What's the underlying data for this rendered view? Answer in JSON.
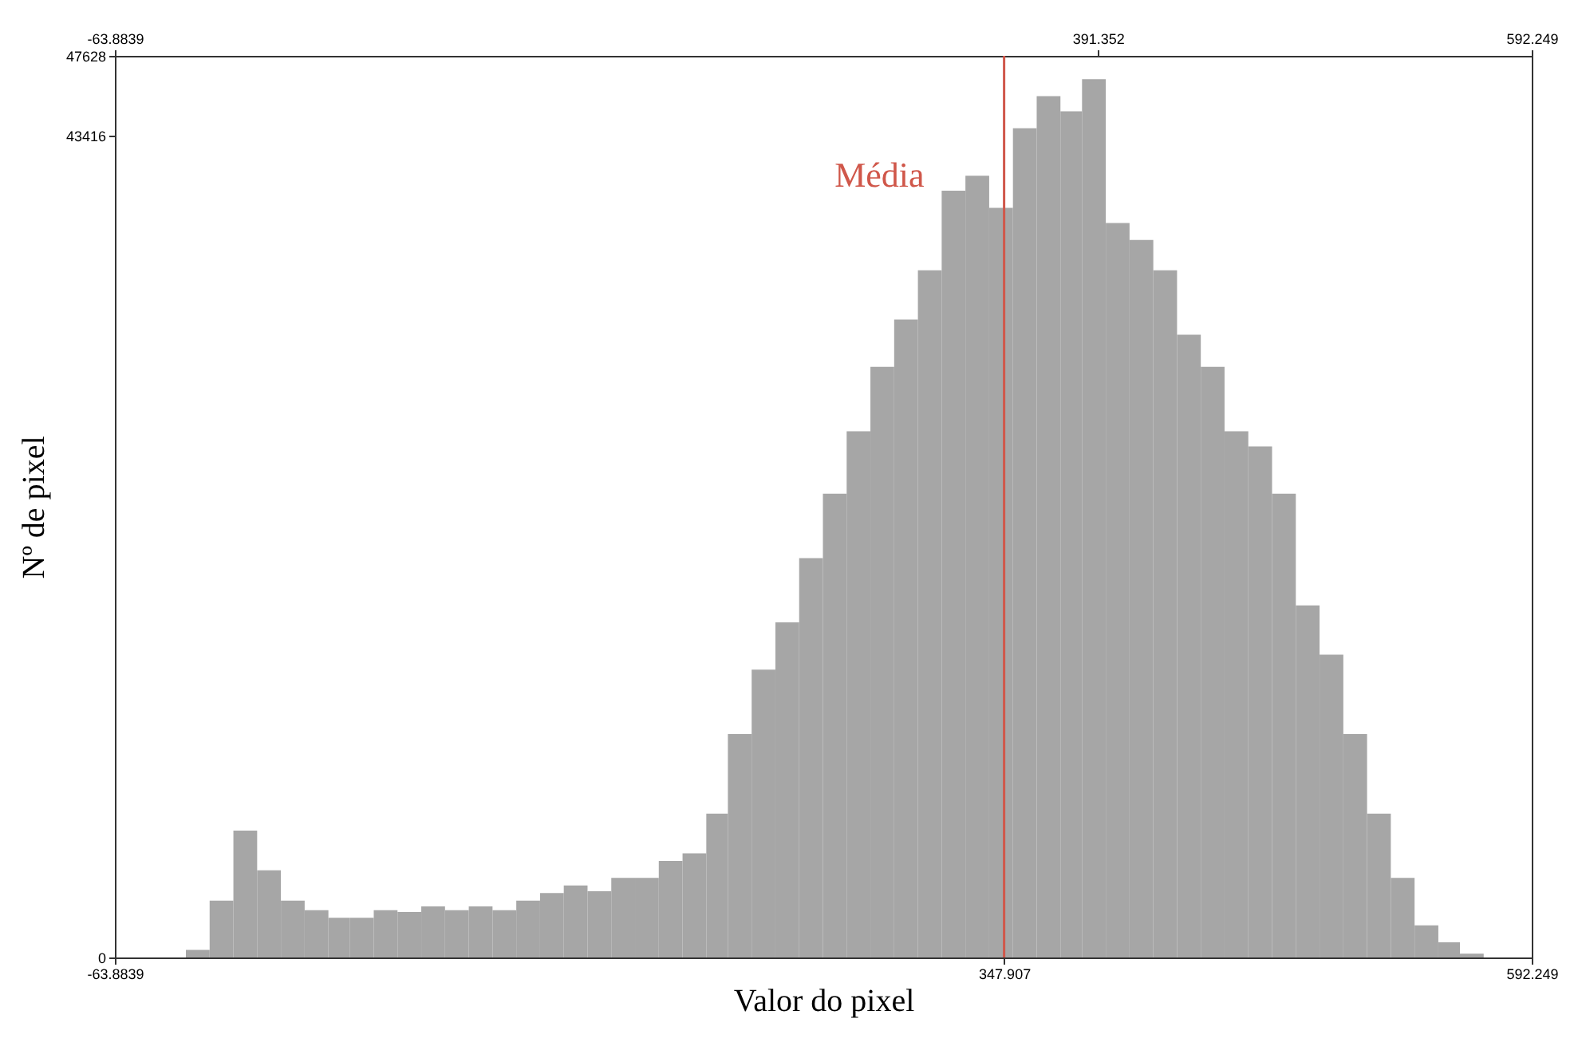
{
  "chart_data": {
    "type": "histogram",
    "xlabel": "Valor do pixel",
    "ylabel": "Nº de pixel",
    "color": "#a6a6a6",
    "bins": [
      -31,
      -20,
      -9,
      2,
      13,
      24,
      35,
      45,
      56,
      67,
      78,
      89,
      100,
      111,
      122,
      133,
      144,
      155,
      166,
      177,
      188,
      199,
      210,
      220,
      231,
      242,
      253,
      264,
      275,
      286,
      297,
      308,
      319,
      330,
      341,
      352,
      363,
      374,
      384,
      395,
      406,
      417,
      428,
      439,
      450,
      461,
      472,
      483,
      494,
      505,
      516,
      527,
      538,
      549,
      559,
      570
    ],
    "values": [
      400,
      3000,
      6700,
      4600,
      3000,
      2500,
      2100,
      2100,
      2500,
      2400,
      2700,
      2500,
      2700,
      2500,
      3000,
      3400,
      3800,
      3500,
      4200,
      4200,
      5100,
      5500,
      7600,
      11800,
      15200,
      17700,
      21100,
      24500,
      27800,
      31200,
      33700,
      36300,
      40500,
      41300,
      39600,
      43800,
      45500,
      44700,
      46400,
      38800,
      37900,
      36300,
      32900,
      31200,
      27800,
      27000,
      24500,
      18600,
      16000,
      11800,
      7600,
      4200,
      1700,
      800,
      200
    ],
    "xlim": [
      -63.8839,
      592.249
    ],
    "xticks": [
      -63.8839,
      347.907,
      592.249
    ],
    "x2lim": [
      -63.8839,
      592.249
    ],
    "x2ticks": [
      -63.8839,
      391.352,
      592.249
    ],
    "ylim": [
      0,
      47628
    ],
    "yticks": [
      0,
      43416,
      47628
    ],
    "ref_lines": [
      {
        "axis": "x",
        "value": 347.907,
        "label": "Média",
        "color": "#d0574a"
      }
    ],
    "grid": false
  }
}
